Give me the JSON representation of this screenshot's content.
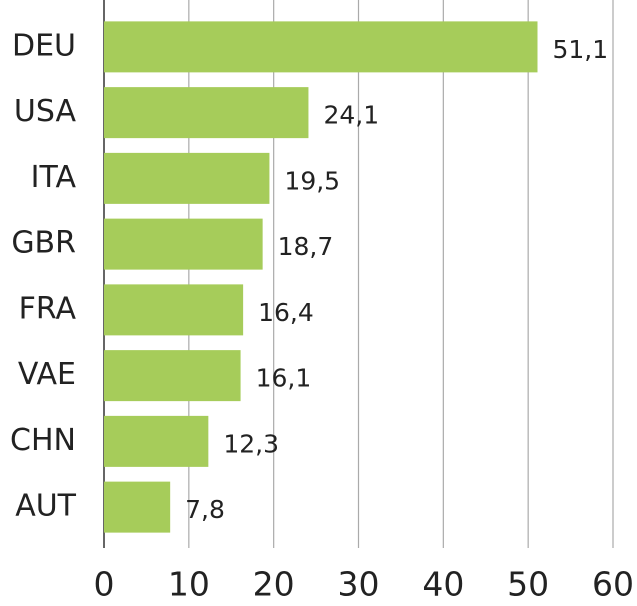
{
  "chart_data": {
    "type": "bar",
    "orientation": "horizontal",
    "categories": [
      "DEU",
      "USA",
      "ITA",
      "GBR",
      "FRA",
      "VAE",
      "CHN",
      "AUT"
    ],
    "values": [
      51.1,
      24.1,
      19.5,
      18.7,
      16.4,
      16.1,
      12.3,
      7.8
    ],
    "value_labels": [
      "51,1",
      "24,1",
      "19,5",
      "18,7",
      "16,4",
      "16,1",
      "12,3",
      "7,8"
    ],
    "color": "#a6cc5a",
    "xlim": [
      0,
      60
    ],
    "xticks": [
      0,
      10,
      20,
      30,
      40,
      50,
      60
    ],
    "grid": true
  }
}
